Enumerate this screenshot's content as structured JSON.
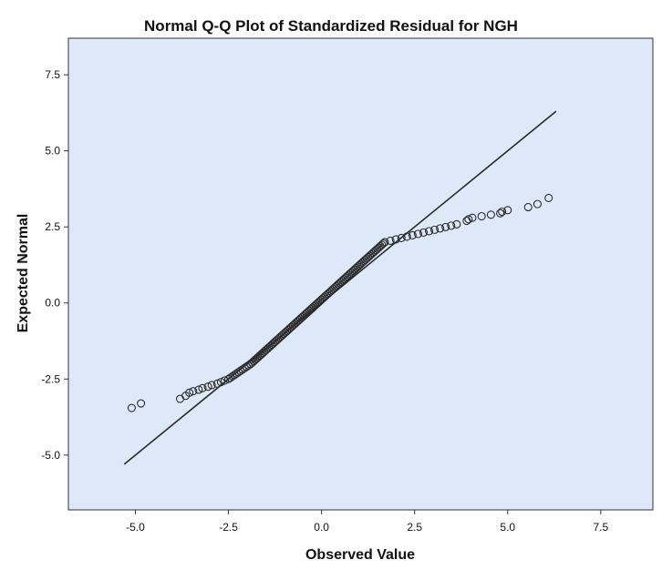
{
  "chart_data": {
    "type": "scatter",
    "title": "Normal Q-Q Plot of Standardized Residual for NGH",
    "xlabel": "Observed Value",
    "ylabel": "Expected Normal",
    "xlim": [
      -6.8,
      8.9
    ],
    "ylim": [
      -6.8,
      8.7
    ],
    "xticks": [
      "-5.0",
      "-2.5",
      "0.0",
      "2.5",
      "5.0",
      "7.5"
    ],
    "yticks": [
      "7.5",
      "5.0",
      "2.5",
      "0.0",
      "-2.5",
      "-5.0"
    ],
    "reference_line": {
      "x": [
        -5.3,
        6.3
      ],
      "y": [
        -5.3,
        6.3
      ]
    },
    "grid": false,
    "legend": "none",
    "colors": {
      "plot_background": "#dde9f9",
      "marker": "#2a2a2a",
      "line": "#2a2a2a"
    },
    "series": [
      {
        "x": [
          -5.1,
          -4.85,
          -3.8,
          -3.65,
          -3.55,
          -3.45,
          -3.3,
          -3.2,
          -3.05,
          -2.95,
          -2.8,
          -2.7,
          -2.6,
          3.9,
          3.95,
          4.05,
          4.3,
          4.55,
          4.8,
          4.85,
          5.0,
          5.55,
          5.8,
          6.1
        ],
        "y": [
          -3.45,
          -3.3,
          -3.15,
          -3.05,
          -2.95,
          -2.9,
          -2.85,
          -2.8,
          -2.75,
          -2.7,
          -2.65,
          -2.6,
          -2.55,
          2.7,
          2.75,
          2.8,
          2.85,
          2.9,
          2.95,
          3.0,
          3.05,
          3.15,
          3.25,
          3.45
        ]
      }
    ]
  }
}
